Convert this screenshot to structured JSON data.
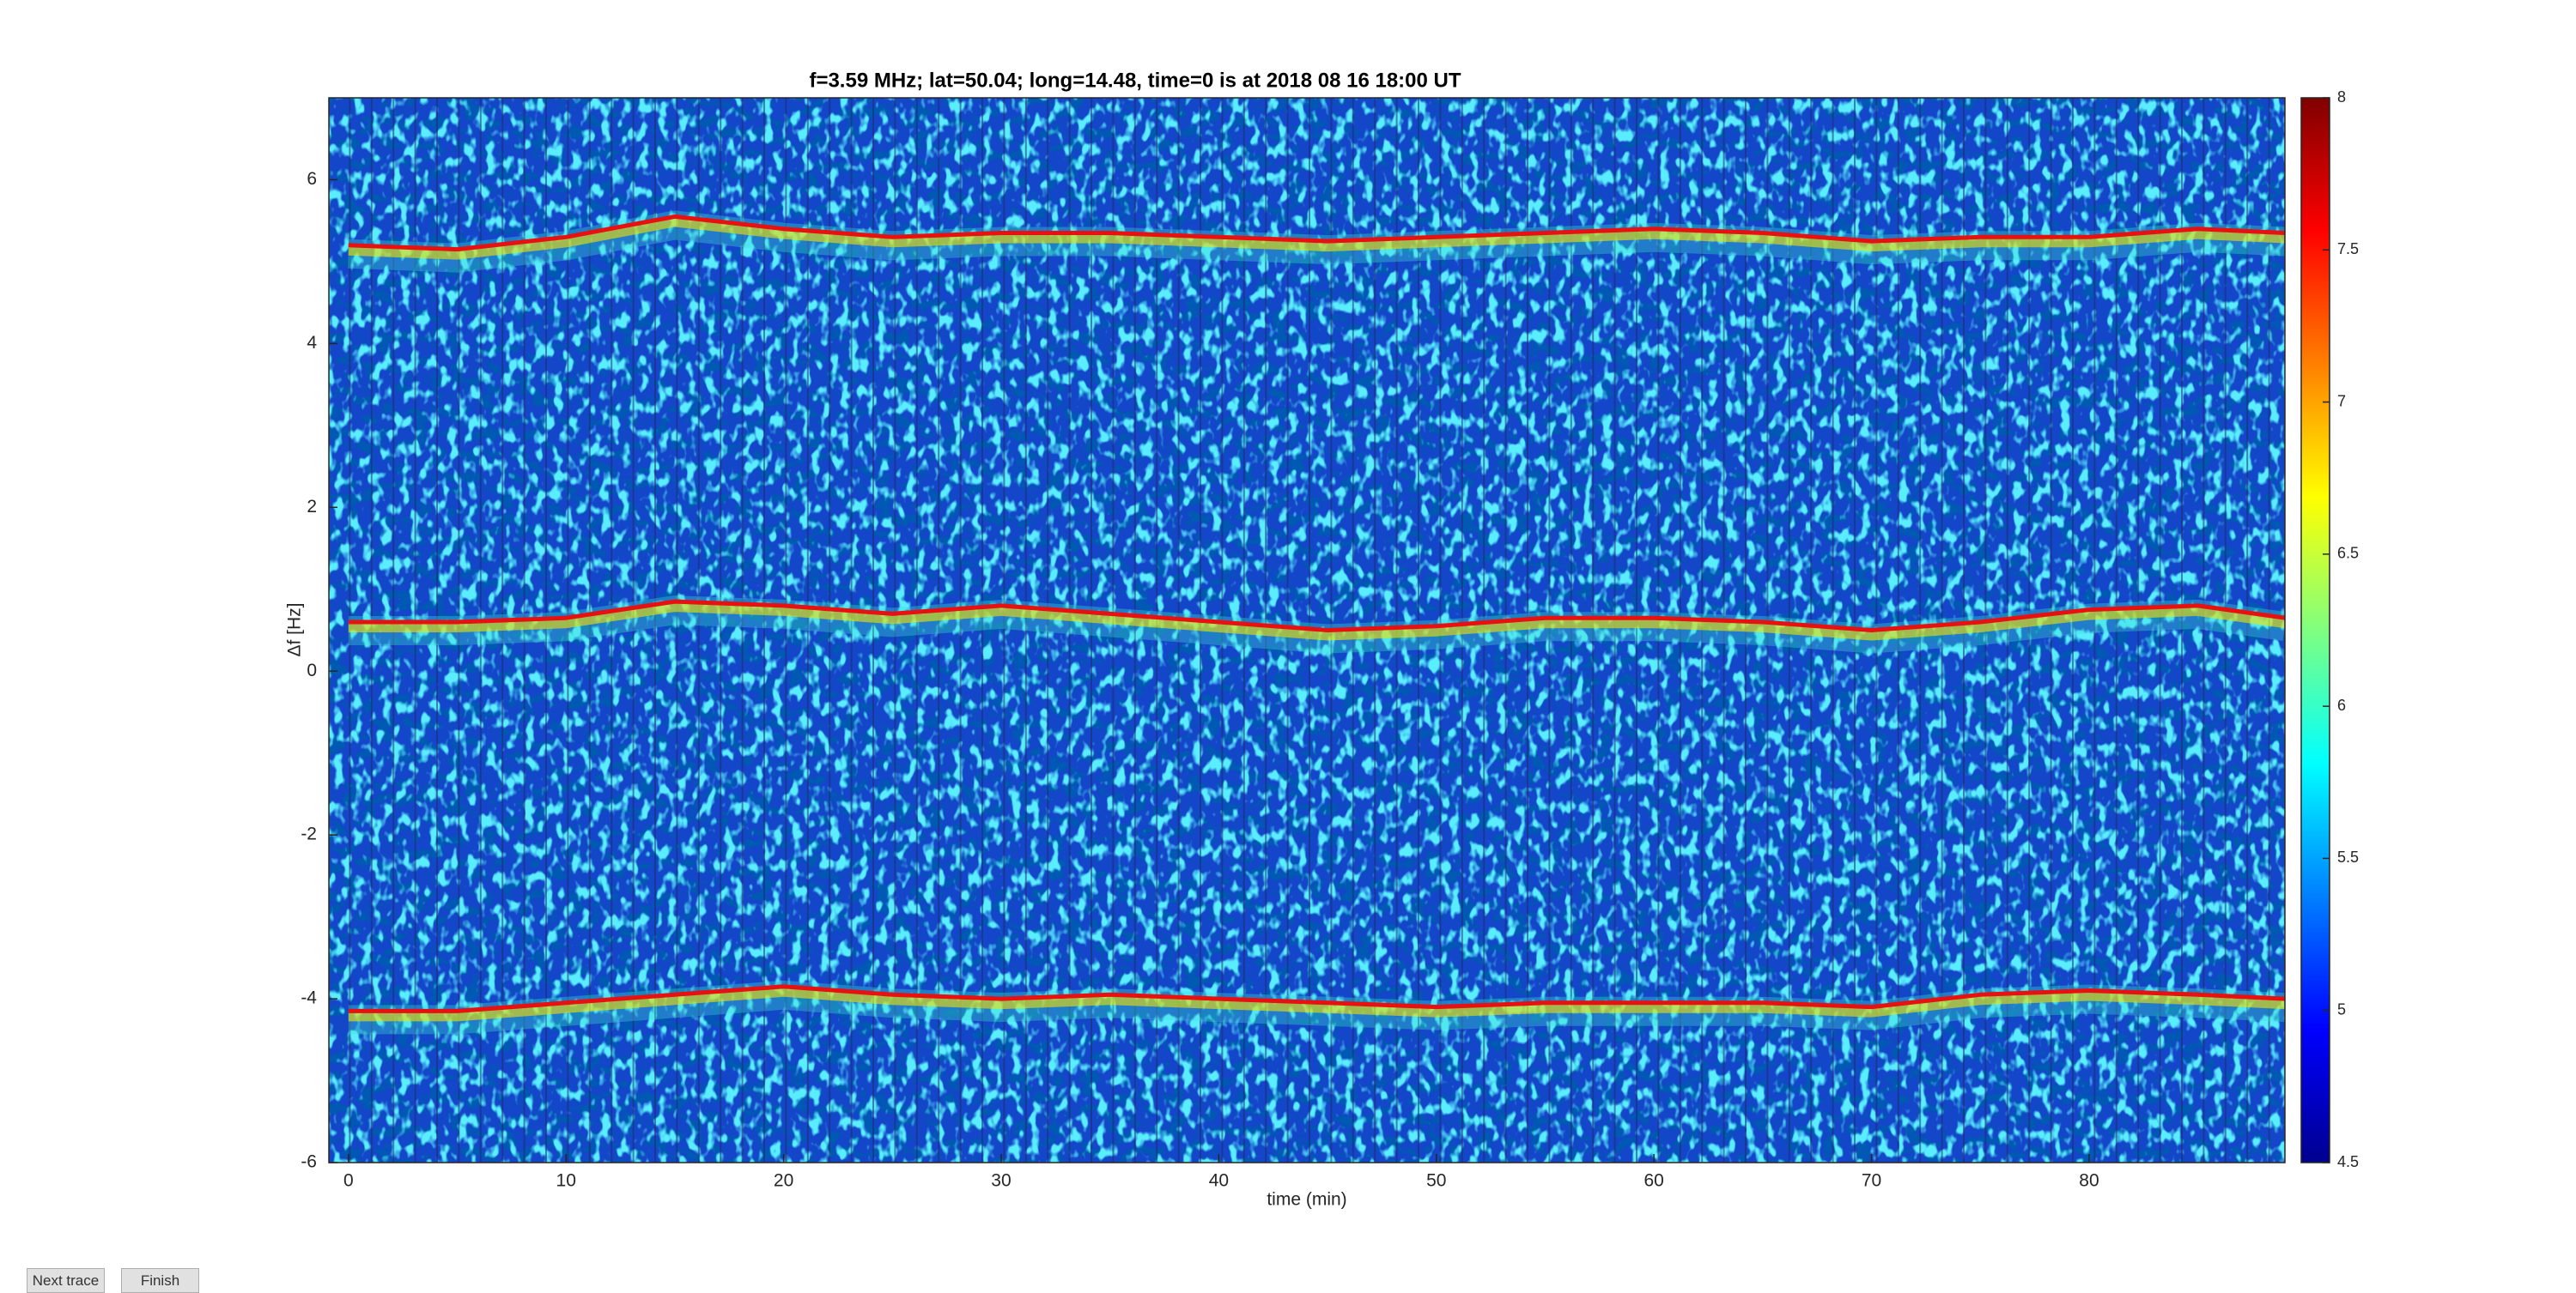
{
  "chart_data": {
    "type": "line",
    "title": "f=3.59 MHz;  lat=50.04; long=14.48, time=0 is at 2018 08 16 18:00 UT",
    "x_label": "time (min)",
    "y_label": "Δf [Hz]",
    "x": [
      0,
      5,
      10,
      15,
      20,
      25,
      30,
      35,
      40,
      45,
      50,
      55,
      60,
      65,
      70,
      75,
      80,
      85,
      89
    ],
    "series": [
      {
        "color": "#e81010",
        "values": [
          5.2,
          5.15,
          5.3,
          5.55,
          5.4,
          5.3,
          5.35,
          5.35,
          5.3,
          5.25,
          5.3,
          5.35,
          5.4,
          5.35,
          5.25,
          5.3,
          5.3,
          5.4,
          5.35
        ]
      },
      {
        "color": "#e81010",
        "values": [
          0.6,
          0.6,
          0.65,
          0.85,
          0.8,
          0.7,
          0.8,
          0.7,
          0.6,
          0.5,
          0.55,
          0.65,
          0.65,
          0.6,
          0.5,
          0.6,
          0.75,
          0.8,
          0.65
        ]
      },
      {
        "color": "#e81010",
        "values": [
          -4.15,
          -4.15,
          -4.05,
          -3.95,
          -3.85,
          -3.95,
          -4.0,
          -3.95,
          -4.0,
          -4.05,
          -4.1,
          -4.05,
          -4.05,
          -4.05,
          -4.1,
          -3.95,
          -3.9,
          -3.95,
          -4.0
        ]
      }
    ],
    "xlim": [
      -0.9,
      89
    ],
    "xticks": [
      0,
      10,
      20,
      30,
      40,
      50,
      60,
      70,
      80
    ],
    "ylim": [
      -6,
      7
    ],
    "yticks": [
      -6,
      -4,
      -2,
      0,
      2,
      4,
      6
    ],
    "clim": [
      4.5,
      8
    ],
    "cticks": [
      4.5,
      5,
      5.5,
      6,
      6.5,
      7,
      7.5,
      8
    ],
    "colormap": "jet"
  },
  "controls": {
    "buttons": [
      "Next trace",
      "Finish"
    ]
  }
}
